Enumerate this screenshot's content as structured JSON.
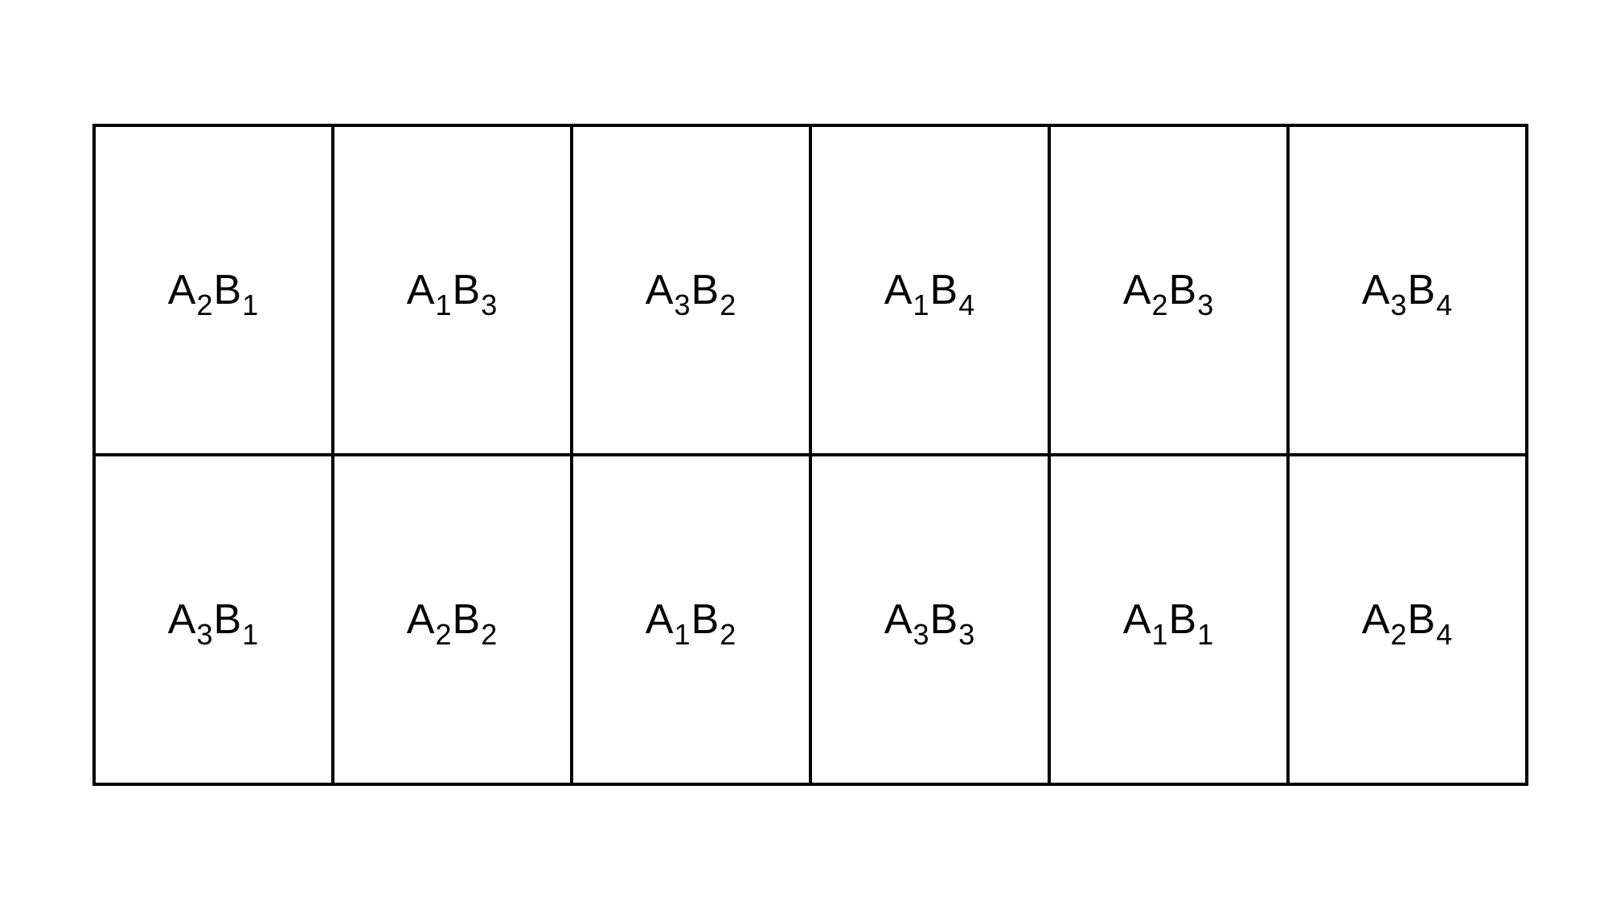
{
  "grid": {
    "rows": [
      [
        {
          "a": "A",
          "a_sub": "2",
          "b": "B",
          "b_sub": "1"
        },
        {
          "a": "A",
          "a_sub": "1",
          "b": "B",
          "b_sub": "3"
        },
        {
          "a": "A",
          "a_sub": "3",
          "b": "B",
          "b_sub": "2"
        },
        {
          "a": "A",
          "a_sub": "1",
          "b": "B",
          "b_sub": "4"
        },
        {
          "a": "A",
          "a_sub": "2",
          "b": "B",
          "b_sub": "3"
        },
        {
          "a": "A",
          "a_sub": "3",
          "b": "B",
          "b_sub": "4"
        }
      ],
      [
        {
          "a": "A",
          "a_sub": "3",
          "b": "B",
          "b_sub": "1"
        },
        {
          "a": "A",
          "a_sub": "2",
          "b": "B",
          "b_sub": "2"
        },
        {
          "a": "A",
          "a_sub": "1",
          "b": "B",
          "b_sub": "2"
        },
        {
          "a": "A",
          "a_sub": "3",
          "b": "B",
          "b_sub": "3"
        },
        {
          "a": "A",
          "a_sub": "1",
          "b": "B",
          "b_sub": "1"
        },
        {
          "a": "A",
          "a_sub": "2",
          "b": "B",
          "b_sub": "4"
        }
      ]
    ]
  }
}
